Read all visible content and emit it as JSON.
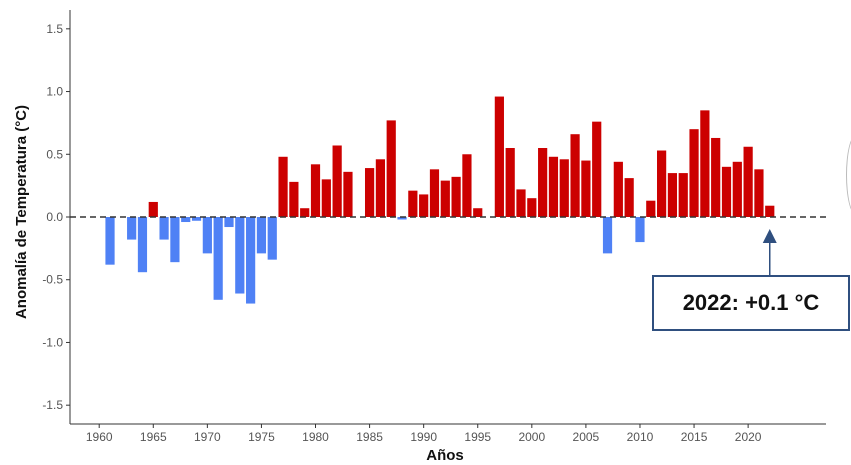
{
  "chart_data": {
    "type": "bar",
    "xlabel": "Años",
    "ylabel": "Anomalía de Temperatura (°C)",
    "ylim": [
      -1.65,
      1.65
    ],
    "xlim": [
      1957.3,
      2027.2
    ],
    "yticks": [
      -1.5,
      -1.0,
      -0.5,
      0.0,
      0.5,
      1.0,
      1.5
    ],
    "ytick_labels": [
      "-1.5",
      "-1.0",
      "-0.5",
      "0.0",
      "0.5",
      "1.0",
      "1.5"
    ],
    "xticks": [
      1960,
      1965,
      1970,
      1975,
      1980,
      1985,
      1990,
      1995,
      2000,
      2005,
      2010,
      2015,
      2020
    ],
    "xtick_labels": [
      "1960",
      "1965",
      "1970",
      "1975",
      "1980",
      "1985",
      "1990",
      "1995",
      "2000",
      "2005",
      "2010",
      "2015",
      "2020"
    ],
    "years": [
      1961,
      1962,
      1963,
      1964,
      1965,
      1966,
      1967,
      1968,
      1969,
      1970,
      1971,
      1972,
      1973,
      1974,
      1975,
      1976,
      1977,
      1978,
      1979,
      1980,
      1981,
      1982,
      1983,
      1984,
      1985,
      1986,
      1987,
      1988,
      1989,
      1990,
      1991,
      1992,
      1993,
      1994,
      1995,
      1996,
      1997,
      1998,
      1999,
      2000,
      2001,
      2002,
      2003,
      2004,
      2005,
      2006,
      2007,
      2008,
      2009,
      2010,
      2011,
      2012,
      2013,
      2014,
      2015,
      2016,
      2017,
      2018,
      2019,
      2020,
      2021,
      2022
    ],
    "values": [
      -0.38,
      0.0,
      -0.18,
      -0.44,
      0.12,
      -0.18,
      -0.36,
      -0.04,
      -0.03,
      -0.29,
      -0.66,
      -0.08,
      -0.61,
      -0.69,
      -0.29,
      -0.34,
      0.48,
      0.28,
      0.07,
      0.42,
      0.3,
      0.57,
      0.36,
      0.0,
      0.39,
      0.46,
      0.77,
      -0.02,
      0.21,
      0.18,
      0.38,
      0.29,
      0.32,
      0.5,
      0.07,
      0.0,
      0.96,
      0.55,
      0.22,
      0.15,
      0.55,
      0.48,
      0.46,
      0.66,
      0.45,
      0.76,
      -0.29,
      0.44,
      0.31,
      -0.2,
      0.13,
      0.53,
      0.35,
      0.35,
      0.7,
      0.85,
      0.63,
      0.4,
      0.44,
      0.56,
      0.38,
      0.09
    ],
    "colors": {
      "positive": "#cc0000",
      "negative": "#4f81f5",
      "zero_line": "#333333",
      "axis": "#333333",
      "annotation": "#2f4f7f"
    },
    "grid": false,
    "reference_line": {
      "y": 0.0,
      "style": "dashed"
    },
    "annotation": {
      "text": "2022: +0.1 °C",
      "target_year": 2022,
      "target_value": 0.0
    }
  }
}
